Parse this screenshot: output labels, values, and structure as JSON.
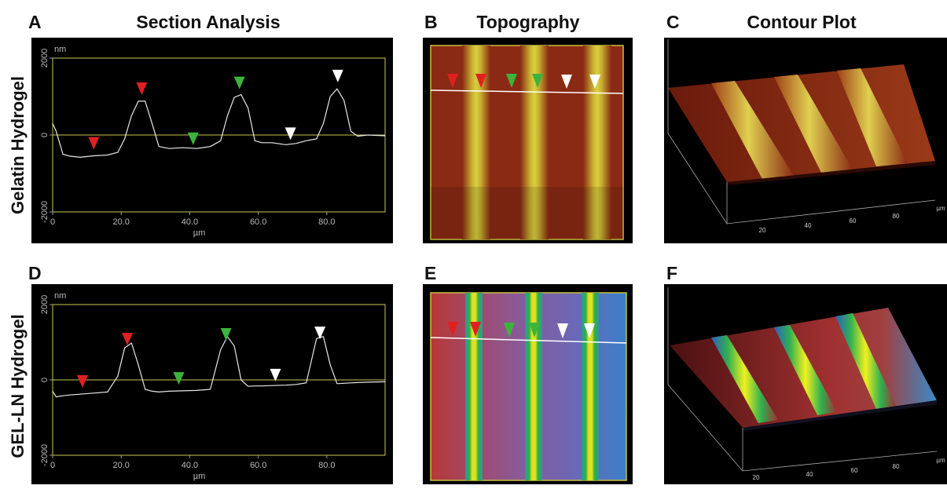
{
  "headers": {
    "a": "A",
    "a_title": "Section Analysis",
    "b": "B",
    "b_title": "Topography",
    "c": "C",
    "c_title": "Contour Plot",
    "d": "D",
    "e": "E",
    "f": "F"
  },
  "row_labels": [
    "Gelatin Hydrogel",
    "GEL-LN Hydrogel"
  ],
  "contour_axes": [
    {
      "ticks": [
        "20",
        "40",
        "60",
        "80"
      ],
      "unit": "µm"
    },
    {
      "ticks": [
        "20",
        "40",
        "60",
        "80"
      ],
      "unit": "µm"
    }
  ],
  "chart_data": [
    {
      "type": "line",
      "y_label": "nm",
      "x_label": "µm",
      "x": [
        0,
        1,
        3,
        5,
        8,
        12,
        16,
        19,
        21,
        23,
        25,
        27,
        29,
        31,
        34,
        38,
        42,
        46,
        49,
        51,
        53,
        55,
        57,
        59,
        61,
        64,
        68,
        71,
        74,
        77,
        79,
        81,
        83,
        85,
        87,
        89,
        92,
        97
      ],
      "series": [
        {
          "color": "#e8e8e8",
          "values": [
            300,
            100,
            -500,
            -550,
            -580,
            -540,
            -520,
            -450,
            -100,
            500,
            880,
            880,
            300,
            -300,
            -350,
            -330,
            -350,
            -300,
            -150,
            500,
            980,
            1050,
            700,
            -150,
            -200,
            -200,
            -250,
            -220,
            -150,
            -100,
            300,
            1000,
            1200,
            900,
            100,
            -30,
            0,
            -20
          ]
        }
      ],
      "xlim": [
        0,
        97
      ],
      "ylim": [
        -2000,
        2000
      ],
      "xticks": [
        0,
        {
          "value": 20,
          "label": "20.0"
        },
        {
          "value": 40,
          "label": "40.0"
        },
        {
          "value": 60,
          "label": "60.0"
        },
        {
          "value": 80,
          "label": "80.0"
        }
      ],
      "yticks": [
        -2000,
        0,
        2000
      ],
      "frame_color": "#c8c850",
      "markers": {
        "x": [
          12,
          26,
          41,
          54.5,
          69.4,
          83.2
        ],
        "y": [
          -420,
          1000,
          -300,
          1150,
          -170,
          1330
        ],
        "colors": [
          "#e02020",
          "#e02020",
          "#3cb43c",
          "#3cb43c",
          "#ffffff",
          "#ffffff"
        ]
      }
    },
    {
      "type": "line",
      "y_label": "nm",
      "x_label": "µm",
      "x": [
        0,
        1,
        3,
        5,
        8,
        12,
        16,
        19,
        21,
        23,
        25,
        27,
        29,
        31,
        34,
        38,
        42,
        46,
        49,
        51,
        53,
        55,
        57,
        59,
        61,
        64,
        68,
        71,
        74,
        77,
        79,
        81,
        83,
        85,
        87,
        89,
        92,
        97
      ],
      "series": [
        {
          "color": "#e8e8e8",
          "values": [
            -300,
            -450,
            -420,
            -400,
            -380,
            -350,
            -320,
            100,
            850,
            980,
            400,
            -250,
            -300,
            -320,
            -300,
            -290,
            -280,
            -250,
            800,
            1150,
            900,
            0,
            -170,
            -160,
            -160,
            -150,
            -140,
            -120,
            -80,
            1100,
            1150,
            400,
            -100,
            -90,
            -80,
            -70,
            -60,
            -50
          ]
        }
      ],
      "xlim": [
        0,
        97
      ],
      "ylim": [
        -2000,
        2000
      ],
      "xticks": [
        0,
        {
          "value": 20,
          "label": "20.0"
        },
        {
          "value": 40,
          "label": "40.0"
        },
        {
          "value": 60,
          "label": "60.0"
        },
        {
          "value": 80,
          "label": "80.0"
        }
      ],
      "yticks": [
        -2000,
        0,
        2000
      ],
      "frame_color": "#c8c850",
      "markers": {
        "x": [
          8.7,
          21.8,
          36.8,
          50.6,
          65,
          78
        ],
        "y": [
          -250,
          875,
          -170,
          1000,
          -80,
          1040
        ],
        "colors": [
          "#e02020",
          "#e02020",
          "#3cb43c",
          "#3cb43c",
          "#ffffff",
          "#ffffff"
        ]
      }
    }
  ]
}
